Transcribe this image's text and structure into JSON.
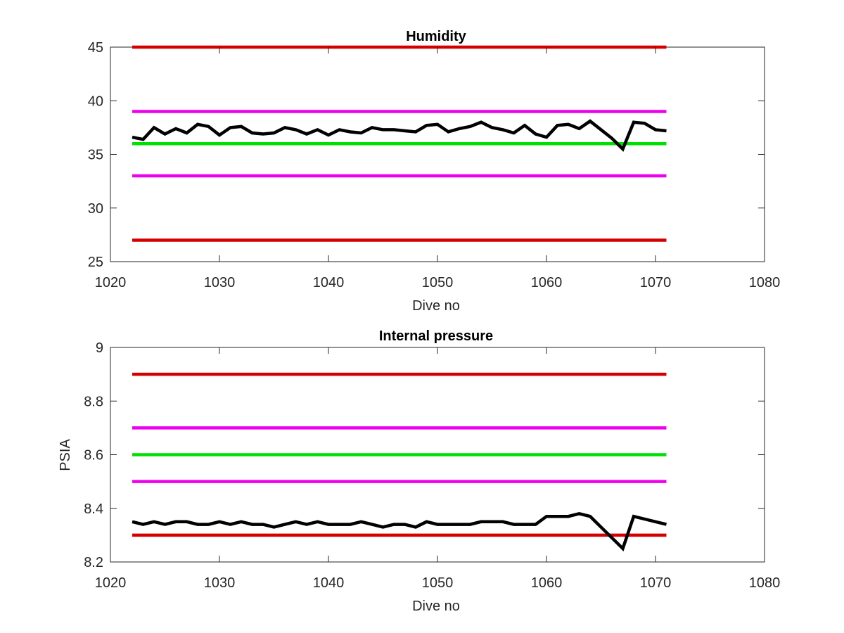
{
  "chart_data": [
    {
      "id": "humidity",
      "type": "line",
      "title": "Humidity",
      "xlabel": "Dive no",
      "ylabel": "",
      "xlim": [
        1020,
        1080
      ],
      "ylim": [
        25,
        45
      ],
      "xticks": [
        1020,
        1030,
        1040,
        1050,
        1060,
        1070,
        1080
      ],
      "yticks": [
        25,
        30,
        35,
        40,
        45
      ],
      "grid": false,
      "reference_lines": [
        {
          "y": 45,
          "x": [
            1022,
            1071
          ],
          "color": "#d40000"
        },
        {
          "y": 39,
          "x": [
            1022,
            1071
          ],
          "color": "#ee00ee"
        },
        {
          "y": 36,
          "x": [
            1022,
            1071
          ],
          "color": "#00e000"
        },
        {
          "y": 33,
          "x": [
            1022,
            1071
          ],
          "color": "#ee00ee"
        },
        {
          "y": 27,
          "x": [
            1022,
            1071
          ],
          "color": "#d40000"
        }
      ],
      "series": [
        {
          "color": "#000000",
          "x": [
            1022,
            1023,
            1024,
            1025,
            1026,
            1027,
            1028,
            1029,
            1030,
            1031,
            1032,
            1033,
            1034,
            1035,
            1036,
            1037,
            1038,
            1039,
            1040,
            1041,
            1042,
            1043,
            1044,
            1045,
            1046,
            1047,
            1048,
            1049,
            1050,
            1051,
            1052,
            1053,
            1054,
            1055,
            1056,
            1057,
            1058,
            1059,
            1060,
            1061,
            1062,
            1063,
            1064,
            1065,
            1066,
            1067,
            1068,
            1069,
            1070,
            1071
          ],
          "y": [
            36.6,
            36.4,
            37.5,
            36.9,
            37.4,
            37.0,
            37.8,
            37.6,
            36.8,
            37.5,
            37.6,
            37.0,
            36.9,
            37.0,
            37.5,
            37.3,
            36.9,
            37.3,
            36.8,
            37.3,
            37.1,
            37.0,
            37.5,
            37.3,
            37.3,
            37.2,
            37.1,
            37.7,
            37.8,
            37.1,
            37.4,
            37.6,
            38.0,
            37.5,
            37.3,
            37.0,
            37.7,
            36.9,
            36.6,
            37.7,
            37.8,
            37.4,
            38.1,
            37.3,
            36.5,
            35.5,
            38.0,
            37.9,
            37.3,
            37.2
          ]
        }
      ]
    },
    {
      "id": "internal-pressure",
      "type": "line",
      "title": "Internal pressure",
      "xlabel": "Dive no",
      "ylabel": "PSIA",
      "xlim": [
        1020,
        1080
      ],
      "ylim": [
        8.2,
        9
      ],
      "xticks": [
        1020,
        1030,
        1040,
        1050,
        1060,
        1070,
        1080
      ],
      "yticks": [
        8.2,
        8.4,
        8.6,
        8.8,
        9
      ],
      "ytick_labels": [
        "8.2",
        "8.4",
        "8.6",
        "8.8",
        "9"
      ],
      "grid": false,
      "reference_lines": [
        {
          "y": 8.9,
          "x": [
            1022,
            1071
          ],
          "color": "#d40000"
        },
        {
          "y": 8.7,
          "x": [
            1022,
            1071
          ],
          "color": "#ee00ee"
        },
        {
          "y": 8.6,
          "x": [
            1022,
            1071
          ],
          "color": "#00e000"
        },
        {
          "y": 8.5,
          "x": [
            1022,
            1071
          ],
          "color": "#ee00ee"
        },
        {
          "y": 8.3,
          "x": [
            1022,
            1071
          ],
          "color": "#d40000"
        }
      ],
      "series": [
        {
          "color": "#000000",
          "x": [
            1022,
            1023,
            1024,
            1025,
            1026,
            1027,
            1028,
            1029,
            1030,
            1031,
            1032,
            1033,
            1034,
            1035,
            1036,
            1037,
            1038,
            1039,
            1040,
            1041,
            1042,
            1043,
            1044,
            1045,
            1046,
            1047,
            1048,
            1049,
            1050,
            1051,
            1052,
            1053,
            1054,
            1055,
            1056,
            1057,
            1058,
            1059,
            1060,
            1061,
            1062,
            1063,
            1064,
            1065,
            1066,
            1067,
            1068,
            1069,
            1070,
            1071
          ],
          "y": [
            8.35,
            8.34,
            8.35,
            8.34,
            8.35,
            8.35,
            8.34,
            8.34,
            8.35,
            8.34,
            8.35,
            8.34,
            8.34,
            8.33,
            8.34,
            8.35,
            8.34,
            8.35,
            8.34,
            8.34,
            8.34,
            8.35,
            8.34,
            8.33,
            8.34,
            8.34,
            8.33,
            8.35,
            8.34,
            8.34,
            8.34,
            8.34,
            8.35,
            8.35,
            8.35,
            8.34,
            8.34,
            8.34,
            8.37,
            8.37,
            8.37,
            8.38,
            8.37,
            8.33,
            8.29,
            8.25,
            8.37,
            8.36,
            8.35,
            8.34
          ]
        }
      ]
    }
  ]
}
